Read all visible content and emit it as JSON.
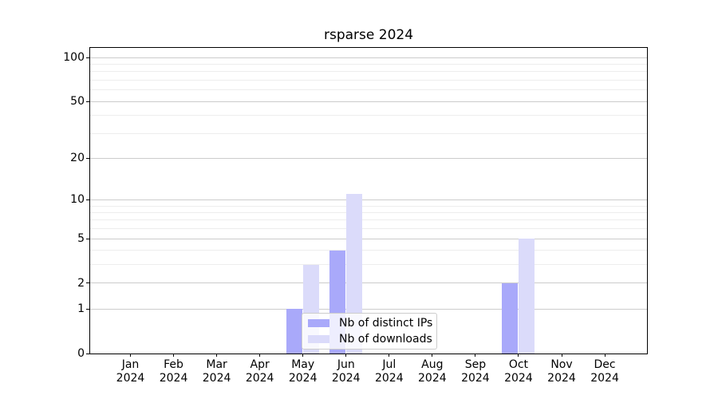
{
  "chart_data": {
    "type": "bar",
    "title": "rsparse 2024",
    "categories": [
      "Jan",
      "Feb",
      "Mar",
      "Apr",
      "May",
      "Jun",
      "Jul",
      "Aug",
      "Sep",
      "Oct",
      "Nov",
      "Dec"
    ],
    "year_label": "2024",
    "series": [
      {
        "name": "Nb of distinct IPs",
        "color": "#a9a9fa",
        "values": [
          0,
          0,
          0,
          0,
          1,
          4,
          0,
          0,
          0,
          2,
          0,
          0
        ]
      },
      {
        "name": "Nb of downloads",
        "color": "#dbdbfa",
        "values": [
          0,
          0,
          0,
          0,
          3,
          11,
          0,
          0,
          0,
          5,
          0,
          0
        ]
      }
    ],
    "y_axis": {
      "scale": "log1p",
      "major_ticks": [
        0,
        1,
        2,
        5,
        10,
        20,
        50,
        100
      ],
      "minor_gridlines": [
        3,
        4,
        6,
        7,
        8,
        9,
        30,
        40,
        60,
        70,
        80,
        90
      ],
      "ylim": [
        0,
        116
      ]
    },
    "xlabel": "",
    "ylabel": "",
    "grid": true,
    "legend_position": "lower center"
  },
  "colors": {
    "background": "#ffffff",
    "axis": "#000000",
    "major_grid": "#cccccc",
    "minor_grid": "#ededed",
    "legend_border": "#cccccc"
  }
}
